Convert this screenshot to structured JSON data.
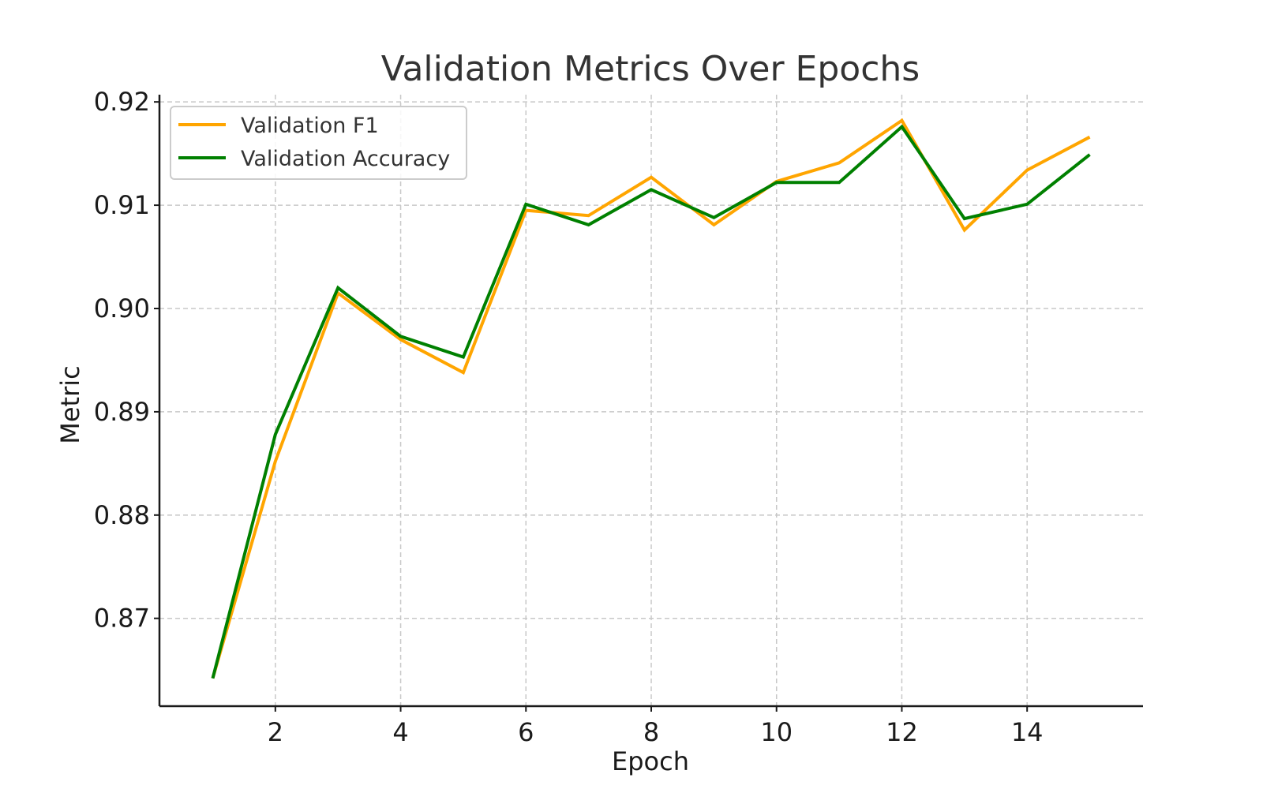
{
  "chart_data": {
    "type": "line",
    "title": "Validation Metrics Over Epochs",
    "xlabel": "Epoch",
    "ylabel": "Metric",
    "x": [
      1,
      2,
      3,
      4,
      5,
      6,
      7,
      8,
      9,
      10,
      11,
      12,
      13,
      14,
      15
    ],
    "xlim": [
      0.15,
      15.85
    ],
    "ylim": [
      0.8615,
      0.9207
    ],
    "x_ticks": [
      2,
      4,
      6,
      8,
      10,
      12,
      14
    ],
    "x_tick_labels": [
      "2",
      "4",
      "6",
      "8",
      "10",
      "12",
      "14"
    ],
    "y_ticks": [
      0.87,
      0.88,
      0.89,
      0.9,
      0.91,
      0.92
    ],
    "y_tick_labels": [
      "0.87",
      "0.88",
      "0.89",
      "0.90",
      "0.91",
      "0.92"
    ],
    "grid": true,
    "legend_position": "top-left",
    "series": [
      {
        "name": "Validation F1",
        "color": "#FFA500",
        "values": [
          0.8642,
          0.8852,
          0.9015,
          0.897,
          0.8938,
          0.9095,
          0.909,
          0.9127,
          0.9081,
          0.9123,
          0.9141,
          0.9182,
          0.9076,
          0.9134,
          0.9166
        ]
      },
      {
        "name": "Validation Accuracy",
        "color": "#008000",
        "values": [
          0.8642,
          0.8878,
          0.902,
          0.8973,
          0.8953,
          0.9101,
          0.9081,
          0.9115,
          0.9088,
          0.9122,
          0.9122,
          0.9176,
          0.9087,
          0.9101,
          0.9149
        ]
      }
    ]
  }
}
